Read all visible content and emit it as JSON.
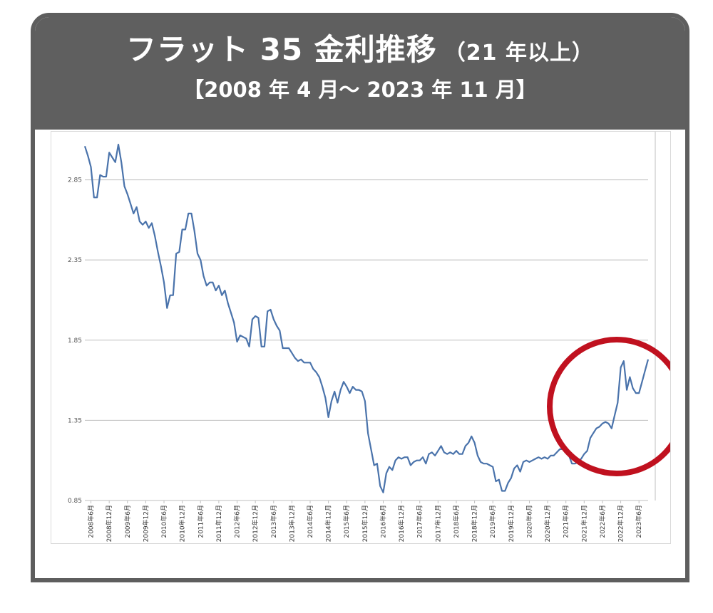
{
  "header": {
    "title_main": "フラット 35 金利推移",
    "title_sub": "（21 年以上）",
    "subtitle": "【2008 年 4 月～ 2023 年 11 月】"
  },
  "colors": {
    "header_bg": "#5f5f5f",
    "line": "#4a73ab",
    "highlight_circle": "#c0111f"
  },
  "chart_data": {
    "type": "line",
    "title": "フラット 35 金利推移（21 年以上）",
    "subtitle": "【2008 年 4 月～ 2023 年 11 月】",
    "xlabel": "",
    "ylabel": "",
    "ylim": [
      0.85,
      3.15
    ],
    "yticks": [
      "0.85",
      "1.35",
      "1.85",
      "2.35",
      "2.85"
    ],
    "grid": true,
    "x_start": "2008-04",
    "x_end": "2023-11",
    "xticks": [
      "2008年6月",
      "2008年12月",
      "2009年6月",
      "2009年12月",
      "2010年6月",
      "2010年12月",
      "2011年6月",
      "2011年12月",
      "2012年6月",
      "2012年12月",
      "2013年6月",
      "2013年12月",
      "2014年6月",
      "2014年12月",
      "2015年6月",
      "2015年12月",
      "2016年6月",
      "2016年12月",
      "2017年6月",
      "2017年12月",
      "2018年6月",
      "2018年12月",
      "2019年6月",
      "2019年12月",
      "2020年6月",
      "2020年12月",
      "2021年6月",
      "2021年12月",
      "2022年6月",
      "2022年12月",
      "2023年6月"
    ],
    "annotation": "circle highlighting 2022–2023 rise",
    "series": [
      {
        "values": [
          3.06,
          3.0,
          2.93,
          2.74,
          2.74,
          2.88,
          2.87,
          2.87,
          3.02,
          2.99,
          2.96,
          3.07,
          2.96,
          2.81,
          2.76,
          2.7,
          2.64,
          2.68,
          2.59,
          2.57,
          2.59,
          2.55,
          2.58,
          2.5,
          2.4,
          2.31,
          2.21,
          2.05,
          2.13,
          2.13,
          2.39,
          2.4,
          2.54,
          2.54,
          2.64,
          2.64,
          2.53,
          2.39,
          2.35,
          2.25,
          2.19,
          2.21,
          2.21,
          2.16,
          2.19,
          2.13,
          2.16,
          2.08,
          2.02,
          1.96,
          1.84,
          1.88,
          1.87,
          1.86,
          1.81,
          1.98,
          2.0,
          1.99,
          1.81,
          1.81,
          2.03,
          2.04,
          1.98,
          1.94,
          1.91,
          1.8,
          1.8,
          1.8,
          1.77,
          1.74,
          1.72,
          1.73,
          1.71,
          1.71,
          1.71,
          1.67,
          1.65,
          1.62,
          1.56,
          1.49,
          1.37,
          1.47,
          1.53,
          1.46,
          1.54,
          1.59,
          1.56,
          1.52,
          1.56,
          1.54,
          1.54,
          1.53,
          1.47,
          1.27,
          1.17,
          1.07,
          1.08,
          0.94,
          0.9,
          1.02,
          1.06,
          1.04,
          1.1,
          1.12,
          1.11,
          1.12,
          1.12,
          1.07,
          1.09,
          1.1,
          1.1,
          1.12,
          1.08,
          1.14,
          1.15,
          1.13,
          1.16,
          1.19,
          1.15,
          1.14,
          1.15,
          1.14,
          1.16,
          1.14,
          1.14,
          1.19,
          1.21,
          1.25,
          1.21,
          1.13,
          1.09,
          1.08,
          1.08,
          1.07,
          1.06,
          0.97,
          0.98,
          0.91,
          0.91,
          0.96,
          0.99,
          1.05,
          1.07,
          1.03,
          1.09,
          1.1,
          1.09,
          1.1,
          1.11,
          1.12,
          1.11,
          1.12,
          1.11,
          1.13,
          1.13,
          1.15,
          1.17,
          1.17,
          1.15,
          1.13,
          1.08,
          1.08,
          1.09,
          1.11,
          1.14,
          1.16,
          1.24,
          1.27,
          1.3,
          1.31,
          1.33,
          1.34,
          1.33,
          1.3,
          1.38,
          1.46,
          1.68,
          1.72,
          1.54,
          1.62,
          1.55,
          1.52,
          1.52,
          1.59,
          1.66,
          1.73
        ]
      }
    ]
  }
}
